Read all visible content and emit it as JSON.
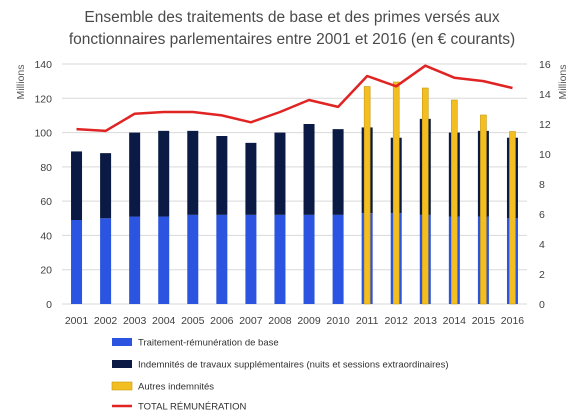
{
  "chart_data": {
    "type": "bar",
    "title": "Ensemble des traitements de base et des primes versés aux fonctionnaires parlementaires entre 2001 et 2016 (en € courants)",
    "title_lines": [
      "Ensemble des traitements de base et des primes versés aux",
      "fonctionnaires parlementaires entre 2001 et 2016 (en € courants)"
    ],
    "ylabel": "Millions",
    "y2label": "Millions",
    "ylim": [
      0,
      140
    ],
    "y2lim": [
      0,
      16
    ],
    "yticks": [
      0,
      20,
      40,
      60,
      80,
      100,
      120,
      140
    ],
    "y2ticks": [
      0,
      2,
      4,
      6,
      8,
      10,
      12,
      14,
      16
    ],
    "grid": true,
    "legend_position": "bottom",
    "categories": [
      "2001",
      "2002",
      "2003",
      "2004",
      "2005",
      "2006",
      "2007",
      "2008",
      "2009",
      "2010",
      "2011",
      "2012",
      "2013",
      "2014",
      "2015",
      "2016"
    ],
    "series": [
      {
        "name": "Traitement-rémunération de base",
        "type": "stacked-bar",
        "axis": "left",
        "color": "#2b54e0",
        "values": [
          49,
          50,
          51,
          51,
          52,
          52,
          52,
          52,
          52,
          52,
          53,
          53,
          52,
          51,
          51,
          50
        ]
      },
      {
        "name": "Indemnités de travaux supplémentaires (nuits et sessions extraordinaires)",
        "type": "stacked-bar",
        "axis": "left",
        "color": "#0b1a44",
        "values": [
          40,
          38,
          49,
          50,
          49,
          46,
          42,
          48,
          53,
          50,
          50,
          44,
          56,
          49,
          50,
          47
        ]
      },
      {
        "name": "Autres indemnités",
        "type": "bar",
        "axis": "right",
        "color": "#f2be22",
        "values": [
          null,
          null,
          null,
          null,
          null,
          null,
          null,
          null,
          null,
          null,
          14.5,
          14.8,
          14.4,
          13.6,
          12.6,
          11.5
        ]
      },
      {
        "name": "TOTAL RÉMUNÉRATION",
        "type": "line",
        "axis": "left",
        "color": "#e02424",
        "values": [
          102,
          101,
          111,
          112,
          112,
          110,
          106,
          112,
          119,
          115,
          133,
          127,
          139,
          132,
          130,
          126
        ]
      }
    ]
  }
}
